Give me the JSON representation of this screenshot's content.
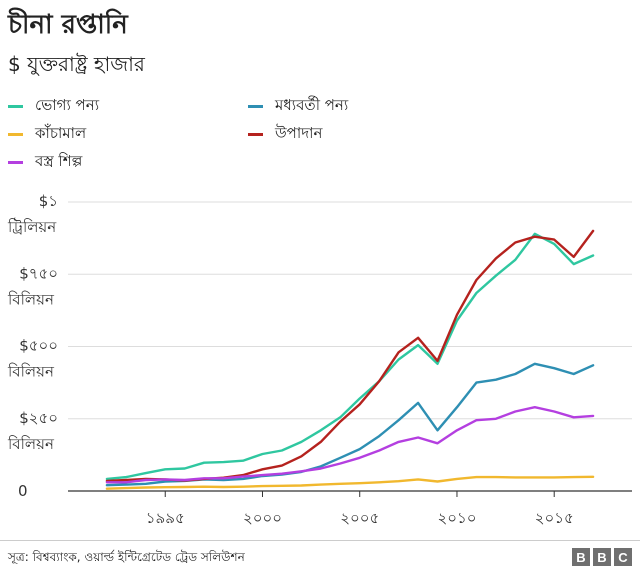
{
  "chart_data": {
    "type": "line",
    "title": "চীনা রপ্তানি",
    "subtitle": "$ যুক্তরাষ্ট্র হাজার",
    "x": [
      1992,
      1993,
      1994,
      1995,
      1996,
      1997,
      1998,
      1999,
      2000,
      2001,
      2002,
      2003,
      2004,
      2005,
      2006,
      2007,
      2008,
      2009,
      2010,
      2011,
      2012,
      2013,
      2014,
      2015,
      2016,
      2017
    ],
    "xlim": [
      1990,
      2019
    ],
    "x_ticks": [
      {
        "value": 1995,
        "label": "১৯৯৫"
      },
      {
        "value": 2000,
        "label": "২০০০"
      },
      {
        "value": 2005,
        "label": "২০০৫"
      },
      {
        "value": 2010,
        "label": "২০১০"
      },
      {
        "value": 2015,
        "label": "২০১৫"
      }
    ],
    "ylim": [
      0,
      1000
    ],
    "y_ticks": [
      {
        "value": 0,
        "line1": "0",
        "line2": ""
      },
      {
        "value": 250,
        "line1": "$২৫০",
        "line2": "বিলিয়ন"
      },
      {
        "value": 500,
        "line1": "$৫০০",
        "line2": "বিলিয়ন"
      },
      {
        "value": 750,
        "line1": "$৭৫০",
        "line2": "বিলিয়ন"
      },
      {
        "value": 1000,
        "line1": "$১",
        "line2": "ট্রিলিয়ন"
      }
    ],
    "grid": true,
    "legend_position": "top-left",
    "series": [
      {
        "name": "ভোগ্য পন্য",
        "color": "#2fc7a0",
        "values": [
          42,
          48,
          62,
          75,
          78,
          98,
          100,
          105,
          128,
          140,
          170,
          210,
          255,
          320,
          380,
          455,
          505,
          440,
          590,
          685,
          745,
          800,
          890,
          855,
          785,
          815
        ]
      },
      {
        "name": "মধ্যবর্তী পন্য",
        "color": "#2e8fb3",
        "values": [
          20,
          22,
          25,
          33,
          35,
          40,
          38,
          42,
          52,
          57,
          66,
          85,
          115,
          145,
          190,
          245,
          305,
          210,
          290,
          375,
          385,
          405,
          440,
          425,
          405,
          435
        ]
      },
      {
        "name": "কাঁচামাল",
        "color": "#f1b82e",
        "values": [
          8,
          10,
          12,
          13,
          14,
          15,
          14,
          15,
          17,
          18,
          19,
          22,
          25,
          27,
          30,
          34,
          40,
          33,
          42,
          48,
          48,
          47,
          47,
          47,
          48,
          49
        ]
      },
      {
        "name": "উপাদান",
        "color": "#b5221e",
        "values": [
          35,
          38,
          42,
          40,
          36,
          42,
          46,
          55,
          75,
          88,
          120,
          170,
          240,
          300,
          380,
          480,
          530,
          450,
          610,
          730,
          805,
          860,
          880,
          870,
          810,
          900
        ]
      },
      {
        "name": "বস্ত্র শিল্প",
        "color": "#b43fe0",
        "values": [
          30,
          30,
          38,
          40,
          38,
          44,
          44,
          50,
          55,
          60,
          68,
          78,
          95,
          115,
          140,
          170,
          185,
          165,
          210,
          245,
          250,
          275,
          290,
          275,
          255,
          260
        ]
      }
    ]
  },
  "footer": {
    "source": "সূত্র: বিশ্বব্যাংক, ওয়ার্ল্ড ইন্টিগ্রেটেড ট্রেড সলিউশন",
    "logo_letters": [
      "B",
      "B",
      "C"
    ]
  }
}
